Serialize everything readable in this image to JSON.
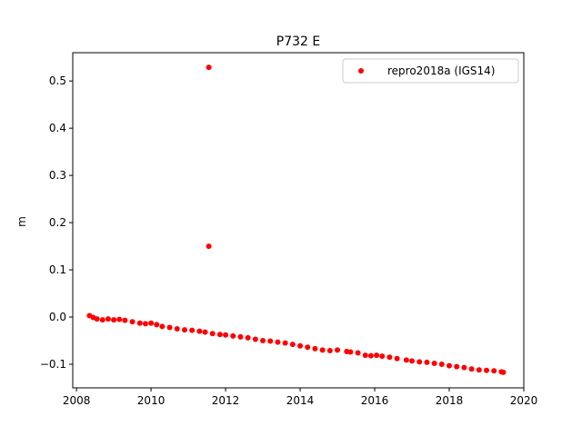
{
  "chart_data": {
    "type": "scatter",
    "title": "P732 E",
    "xlabel": "",
    "ylabel": "m",
    "xlim": [
      2007.9,
      2020.0
    ],
    "ylim": [
      -0.15,
      0.56
    ],
    "xticks": [
      2008,
      2010,
      2012,
      2014,
      2016,
      2018,
      2020
    ],
    "xtick_labels": [
      "2008",
      "2010",
      "2012",
      "2014",
      "2016",
      "2018",
      "2020"
    ],
    "yticks": [
      -0.1,
      0.0,
      0.1,
      0.2,
      0.3,
      0.4,
      0.5
    ],
    "ytick_labels": [
      "−0.1",
      "0.0",
      "0.1",
      "0.2",
      "0.3",
      "0.4",
      "0.5"
    ],
    "grid": false,
    "legend_position": "top-right",
    "series": [
      {
        "name": "repro2018a (IGS14)",
        "color": "#ff0000",
        "marker": "circle",
        "points": [
          [
            2008.35,
            0.003
          ],
          [
            2008.45,
            -0.001
          ],
          [
            2008.55,
            -0.004
          ],
          [
            2008.7,
            -0.006
          ],
          [
            2008.85,
            -0.004
          ],
          [
            2009.0,
            -0.006
          ],
          [
            2009.15,
            -0.005
          ],
          [
            2009.3,
            -0.007
          ],
          [
            2009.5,
            -0.01
          ],
          [
            2009.7,
            -0.013
          ],
          [
            2009.85,
            -0.014
          ],
          [
            2010.0,
            -0.013
          ],
          [
            2010.15,
            -0.016
          ],
          [
            2010.3,
            -0.02
          ],
          [
            2010.5,
            -0.022
          ],
          [
            2010.7,
            -0.025
          ],
          [
            2010.9,
            -0.027
          ],
          [
            2011.1,
            -0.028
          ],
          [
            2011.3,
            -0.03
          ],
          [
            2011.45,
            -0.032
          ],
          [
            2011.55,
            0.529
          ],
          [
            2011.55,
            0.15
          ],
          [
            2011.65,
            -0.035
          ],
          [
            2011.85,
            -0.037
          ],
          [
            2012.0,
            -0.038
          ],
          [
            2012.2,
            -0.04
          ],
          [
            2012.4,
            -0.042
          ],
          [
            2012.6,
            -0.044
          ],
          [
            2012.8,
            -0.047
          ],
          [
            2013.0,
            -0.05
          ],
          [
            2013.2,
            -0.051
          ],
          [
            2013.4,
            -0.053
          ],
          [
            2013.6,
            -0.055
          ],
          [
            2013.8,
            -0.058
          ],
          [
            2014.0,
            -0.061
          ],
          [
            2014.2,
            -0.064
          ],
          [
            2014.4,
            -0.067
          ],
          [
            2014.6,
            -0.07
          ],
          [
            2014.8,
            -0.071
          ],
          [
            2015.0,
            -0.07
          ],
          [
            2015.25,
            -0.073
          ],
          [
            2015.35,
            -0.074
          ],
          [
            2015.55,
            -0.076
          ],
          [
            2015.75,
            -0.081
          ],
          [
            2015.9,
            -0.082
          ],
          [
            2016.05,
            -0.081
          ],
          [
            2016.2,
            -0.083
          ],
          [
            2016.4,
            -0.085
          ],
          [
            2016.6,
            -0.088
          ],
          [
            2016.85,
            -0.091
          ],
          [
            2017.0,
            -0.093
          ],
          [
            2017.2,
            -0.095
          ],
          [
            2017.4,
            -0.096
          ],
          [
            2017.6,
            -0.098
          ],
          [
            2017.8,
            -0.1
          ],
          [
            2018.0,
            -0.103
          ],
          [
            2018.2,
            -0.105
          ],
          [
            2018.4,
            -0.107
          ],
          [
            2018.6,
            -0.11
          ],
          [
            2018.8,
            -0.112
          ],
          [
            2019.0,
            -0.113
          ],
          [
            2019.2,
            -0.114
          ],
          [
            2019.4,
            -0.116
          ],
          [
            2019.45,
            -0.117
          ]
        ]
      }
    ]
  }
}
